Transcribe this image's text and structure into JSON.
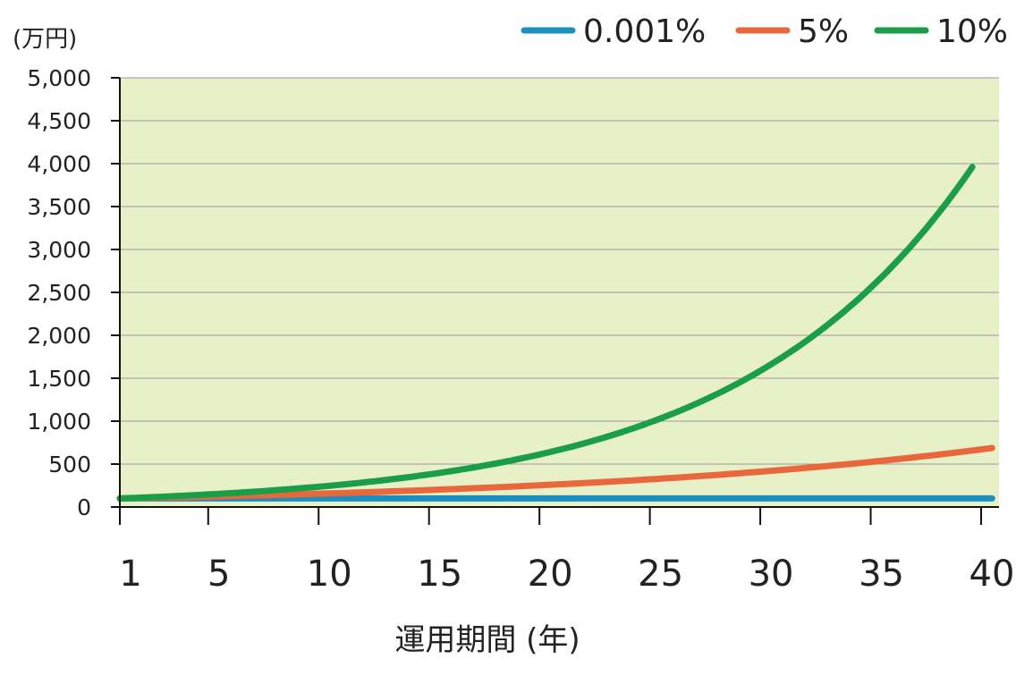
{
  "chart_data": {
    "type": "line",
    "ylabel": "(万円)",
    "xlabel": "運用期間 (年)",
    "xlim": [
      1,
      40
    ],
    "ylim": [
      0,
      5000
    ],
    "x_ticks": [
      "1",
      "5",
      "10",
      "15",
      "20",
      "25",
      "30",
      "35",
      "40"
    ],
    "y_ticks": [
      "0",
      "500",
      "1,000",
      "1,500",
      "2,000",
      "2,500",
      "3,000",
      "3,500",
      "4,000",
      "4,500",
      "5,000"
    ],
    "legend_position": "top-right",
    "grid": true,
    "plot_background": "#e8f0c8",
    "series": [
      {
        "name": "0.001%",
        "color": "#1a8fc2",
        "start": 100,
        "rate": 1e-05,
        "x_end": 40.5
      },
      {
        "name": "5%",
        "color": "#e8683c",
        "start": 100,
        "rate": 0.05,
        "x_end": 40.5
      },
      {
        "name": "10%",
        "color": "#1a9e48",
        "start": 100,
        "rate": 0.1,
        "x_end": 39.6
      }
    ]
  }
}
